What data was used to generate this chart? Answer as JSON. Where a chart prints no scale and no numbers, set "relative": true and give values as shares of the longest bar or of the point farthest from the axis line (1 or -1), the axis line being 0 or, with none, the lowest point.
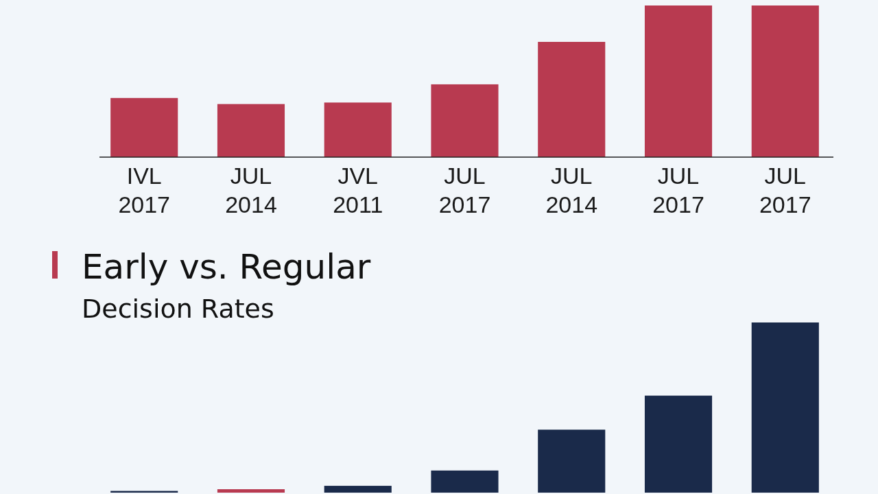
{
  "chart_data": [
    {
      "type": "bar",
      "relative": true,
      "categories": [
        "IVL 2017",
        "JUL 2014",
        "JVL 2011",
        "JUL 2017",
        "JUL 2014",
        "JUL 2017",
        "JUL 2017"
      ],
      "series": [
        {
          "color": "#b83a50",
          "values": [
            0.39,
            0.35,
            0.36,
            0.48,
            0.76,
            1,
            1
          ]
        }
      ]
    },
    {
      "type": "bar",
      "relative": true,
      "title": "Early vs. Regular",
      "subtitle": "Decision Rates",
      "categories": [
        null,
        null,
        null,
        null,
        null,
        null,
        null
      ],
      "series": [
        {
          "colors": [
            "#1a2a4a",
            "#b83a50",
            "#1a2a4a",
            "#1a2a4a",
            "#1a2a4a",
            "#1a2a4a",
            "#1a2a4a"
          ],
          "values": [
            0.01,
            0.02,
            0.04,
            0.13,
            0.37,
            0.57,
            1
          ]
        }
      ],
      "tick_labels": false
    }
  ]
}
